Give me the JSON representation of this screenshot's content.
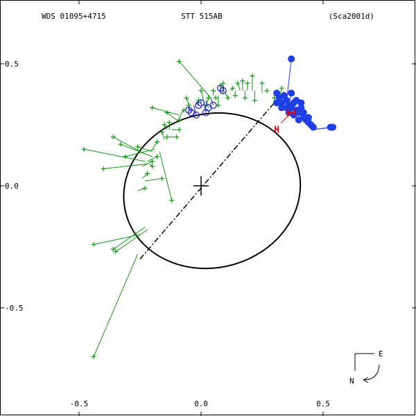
{
  "header": {
    "left": "WDS 01095+4715",
    "center": "STT 515AB",
    "right": "(Sca2001d)"
  },
  "compass": {
    "east": "E",
    "north": "N"
  },
  "colors": {
    "orbit": "#000000",
    "visual": "#119911",
    "micrometer": "#1a1acc",
    "speckle": "#1f3fe6",
    "hipparcos": "#ee0000"
  },
  "chart_data": {
    "type": "scatter",
    "title": "STT 515AB",
    "xlim": [
      -0.8,
      0.8
    ],
    "ylim": [
      0.75,
      -0.75
    ],
    "x_ticks": [
      -0.5,
      0.0,
      0.5
    ],
    "x_tick_labels": [
      "-0.5",
      "0.0",
      "0.5"
    ],
    "y_ticks": [
      -0.5,
      0.0,
      0.5
    ],
    "y_tick_labels": [
      "-0.5",
      "0.0",
      "0.5"
    ],
    "grid": false,
    "orbit_ellipse": {
      "center": [
        0.045,
        -0.02
      ],
      "semi_major": 0.365,
      "semi_minor": 0.315,
      "rotation_deg": -15
    },
    "primary": [
      0.0,
      0.0
    ],
    "line_of_nodes": [
      [
        -0.25,
        -0.3
      ],
      [
        0.3,
        0.34
      ]
    ],
    "hipparcos": {
      "label": "H",
      "point": [
        0.37,
        0.3
      ],
      "label_at": [
        0.31,
        0.24
      ]
    },
    "series": [
      {
        "marker": "plus",
        "points": [
          {
            "obs": [
              -0.44,
              -0.7
            ],
            "calc": [
              -0.26,
              -0.28
            ]
          },
          {
            "obs": [
              -0.44,
              -0.24
            ],
            "calc": [
              -0.25,
              -0.2
            ]
          },
          {
            "obs": [
              -0.36,
              -0.26
            ],
            "calc": [
              -0.23,
              -0.17
            ]
          },
          {
            "obs": [
              -0.35,
              -0.27
            ],
            "calc": [
              -0.22,
              -0.18
            ]
          },
          {
            "obs": [
              -0.48,
              0.15
            ],
            "calc": [
              -0.23,
              0.1
            ]
          },
          {
            "obs": [
              -0.4,
              0.07
            ],
            "calc": [
              -0.22,
              0.09
            ]
          },
          {
            "obs": [
              -0.36,
              0.2
            ],
            "calc": [
              -0.23,
              0.13
            ]
          },
          {
            "obs": [
              -0.33,
              0.17
            ],
            "calc": [
              -0.2,
              0.12
            ]
          },
          {
            "obs": [
              -0.31,
              0.12
            ],
            "calc": [
              -0.19,
              0.15
            ]
          },
          {
            "obs": [
              -0.26,
              0.16
            ],
            "calc": [
              -0.2,
              0.14
            ]
          },
          {
            "obs": [
              -0.2,
              0.1
            ],
            "calc": [
              -0.24,
              0.08
            ]
          },
          {
            "obs": [
              -0.18,
              0.12
            ],
            "calc": [
              -0.22,
              0.1
            ]
          },
          {
            "obs": [
              -0.22,
              0.05
            ],
            "calc": [
              -0.24,
              0.03
            ]
          },
          {
            "obs": [
              -0.16,
              0.03
            ],
            "calc": [
              -0.23,
              0.02
            ]
          },
          {
            "obs": [
              -0.23,
              -0.01
            ],
            "calc": [
              -0.26,
              -0.02
            ]
          },
          {
            "obs": [
              -0.12,
              -0.06
            ],
            "calc": [
              -0.17,
              0.14
            ]
          },
          {
            "obs": [
              -0.2,
              0.08
            ],
            "calc": [
              -0.21,
              0.09
            ]
          },
          {
            "obs": [
              -0.18,
              0.18
            ],
            "calc": [
              -0.2,
              0.15
            ]
          },
          {
            "obs": [
              -0.16,
              0.22
            ],
            "calc": [
              -0.15,
              0.19
            ]
          },
          {
            "obs": [
              -0.14,
              0.2
            ],
            "calc": [
              -0.14,
              0.19
            ]
          },
          {
            "obs": [
              -0.1,
              0.2
            ],
            "calc": [
              -0.13,
              0.2
            ]
          },
          {
            "obs": [
              -0.15,
              0.25
            ],
            "calc": [
              -0.14,
              0.23
            ]
          },
          {
            "obs": [
              -0.13,
              0.26
            ],
            "calc": [
              -0.13,
              0.23
            ]
          },
          {
            "obs": [
              -0.09,
              0.23
            ],
            "calc": [
              -0.12,
              0.23
            ]
          },
          {
            "obs": [
              -0.14,
              0.3
            ],
            "calc": [
              -0.1,
              0.27
            ]
          },
          {
            "obs": [
              -0.2,
              0.32
            ],
            "calc": [
              -0.09,
              0.29
            ]
          },
          {
            "obs": [
              -0.07,
              0.31
            ],
            "calc": [
              -0.08,
              0.3
            ]
          },
          {
            "obs": [
              -0.09,
              0.27
            ],
            "calc": [
              -0.08,
              0.3
            ]
          },
          {
            "obs": [
              -0.06,
              0.36
            ],
            "calc": [
              -0.05,
              0.33
            ]
          },
          {
            "obs": [
              -0.05,
              0.33
            ],
            "calc": [
              -0.05,
              0.32
            ]
          },
          {
            "obs": [
              -0.01,
              0.35
            ],
            "calc": [
              -0.02,
              0.34
            ]
          },
          {
            "obs": [
              -0.09,
              0.51
            ],
            "calc": [
              0.04,
              0.36
            ]
          },
          {
            "obs": [
              0.03,
              0.36
            ],
            "calc": [
              0.03,
              0.36
            ]
          },
          {
            "obs": [
              0.02,
              0.33
            ],
            "calc": [
              0.03,
              0.36
            ]
          },
          {
            "obs": [
              0.0,
              0.39
            ],
            "calc": [
              0.01,
              0.35
            ]
          },
          {
            "obs": [
              0.05,
              0.39
            ],
            "calc": [
              0.05,
              0.37
            ]
          },
          {
            "obs": [
              0.06,
              0.36
            ],
            "calc": [
              0.06,
              0.37
            ]
          },
          {
            "obs": [
              0.09,
              0.42
            ],
            "calc": [
              0.09,
              0.38
            ]
          },
          {
            "obs": [
              0.07,
              0.33
            ],
            "calc": [
              0.07,
              0.37
            ]
          },
          {
            "obs": [
              0.11,
              0.36
            ],
            "calc": [
              0.1,
              0.38
            ]
          },
          {
            "obs": [
              0.13,
              0.4
            ],
            "calc": [
              0.12,
              0.39
            ]
          },
          {
            "obs": [
              0.14,
              0.37
            ],
            "calc": [
              0.14,
              0.39
            ]
          },
          {
            "obs": [
              0.15,
              0.42
            ],
            "calc": [
              0.16,
              0.39
            ]
          },
          {
            "obs": [
              0.18,
              0.36
            ],
            "calc": [
              0.18,
              0.39
            ]
          },
          {
            "obs": [
              0.19,
              0.42
            ],
            "calc": [
              0.19,
              0.39
            ]
          },
          {
            "obs": [
              0.21,
              0.45
            ],
            "calc": [
              0.21,
              0.39
            ]
          },
          {
            "obs": [
              0.22,
              0.35
            ],
            "calc": [
              0.22,
              0.39
            ]
          },
          {
            "obs": [
              0.25,
              0.42
            ],
            "calc": [
              0.25,
              0.38
            ]
          },
          {
            "obs": [
              0.27,
              0.39
            ],
            "calc": [
              0.27,
              0.38
            ]
          },
          {
            "obs": [
              0.3,
              0.36
            ],
            "calc": [
              0.3,
              0.36
            ]
          },
          {
            "obs": [
              0.33,
              0.4
            ],
            "calc": [
              0.32,
              0.35
            ]
          },
          {
            "obs": [
              0.08,
              0.41
            ],
            "calc": [
              0.1,
              0.38
            ]
          },
          {
            "obs": [
              0.17,
              0.43
            ],
            "calc": [
              0.17,
              0.39
            ]
          }
        ]
      },
      {
        "marker": "open-circle",
        "points": [
          {
            "obs": [
              -0.05,
              0.31
            ],
            "calc": [
              -0.05,
              0.32
            ]
          },
          {
            "obs": [
              -0.04,
              0.3
            ],
            "calc": [
              -0.05,
              0.32
            ]
          },
          {
            "obs": [
              -0.02,
              0.29
            ],
            "calc": [
              -0.03,
              0.33
            ]
          },
          {
            "obs": [
              0.02,
              0.3
            ],
            "calc": [
              0.01,
              0.35
            ]
          },
          {
            "obs": [
              0.03,
              0.32
            ],
            "calc": [
              0.02,
              0.35
            ]
          },
          {
            "obs": [
              0.05,
              0.33
            ],
            "calc": [
              0.04,
              0.36
            ]
          },
          {
            "obs": [
              0.08,
              0.4
            ],
            "calc": [
              0.08,
              0.38
            ]
          },
          {
            "obs": [
              0.09,
              0.39
            ],
            "calc": [
              0.09,
              0.38
            ]
          },
          {
            "obs": [
              -0.01,
              0.33
            ],
            "calc": [
              -0.02,
              0.34
            ]
          },
          {
            "obs": [
              0.0,
              0.34
            ],
            "calc": [
              0.0,
              0.35
            ]
          }
        ]
      },
      {
        "marker": "filled-circle",
        "points": [
          {
            "obs": [
              0.37,
              0.52
            ],
            "calc": [
              0.35,
              0.34
            ]
          },
          {
            "obs": [
              0.31,
              0.38
            ],
            "calc": [
              0.31,
              0.36
            ]
          },
          {
            "obs": [
              0.32,
              0.36
            ],
            "calc": [
              0.32,
              0.35
            ]
          },
          {
            "obs": [
              0.33,
              0.34
            ],
            "calc": [
              0.33,
              0.35
            ]
          },
          {
            "obs": [
              0.34,
              0.37
            ],
            "calc": [
              0.34,
              0.34
            ]
          },
          {
            "obs": [
              0.35,
              0.35
            ],
            "calc": [
              0.35,
              0.34
            ]
          },
          {
            "obs": [
              0.36,
              0.33
            ],
            "calc": [
              0.36,
              0.33
            ]
          },
          {
            "obs": [
              0.37,
              0.32
            ],
            "calc": [
              0.37,
              0.32
            ]
          },
          {
            "obs": [
              0.38,
              0.34
            ],
            "calc": [
              0.38,
              0.31
            ]
          },
          {
            "obs": [
              0.39,
              0.31
            ],
            "calc": [
              0.39,
              0.31
            ]
          },
          {
            "obs": [
              0.4,
              0.3
            ],
            "calc": [
              0.4,
              0.3
            ]
          },
          {
            "obs": [
              0.41,
              0.32
            ],
            "calc": [
              0.41,
              0.29
            ]
          },
          {
            "obs": [
              0.42,
              0.28
            ],
            "calc": [
              0.42,
              0.28
            ]
          },
          {
            "obs": [
              0.43,
              0.27
            ],
            "calc": [
              0.43,
              0.27
            ]
          },
          {
            "obs": [
              0.44,
              0.26
            ],
            "calc": [
              0.44,
              0.26
            ]
          },
          {
            "obs": [
              0.45,
              0.25
            ],
            "calc": [
              0.45,
              0.25
            ]
          },
          {
            "obs": [
              0.46,
              0.24
            ],
            "calc": [
              0.46,
              0.24
            ]
          },
          {
            "obs": [
              0.37,
              0.38
            ],
            "calc": [
              0.36,
              0.33
            ]
          },
          {
            "obs": [
              0.39,
              0.35
            ],
            "calc": [
              0.38,
              0.32
            ]
          },
          {
            "obs": [
              0.41,
              0.34
            ],
            "calc": [
              0.4,
              0.3
            ]
          },
          {
            "obs": [
              0.33,
              0.32
            ],
            "calc": [
              0.33,
              0.35
            ]
          },
          {
            "obs": [
              0.36,
              0.3
            ],
            "calc": [
              0.36,
              0.33
            ]
          },
          {
            "obs": [
              0.38,
              0.29
            ],
            "calc": [
              0.38,
              0.31
            ]
          },
          {
            "obs": [
              0.42,
              0.3
            ],
            "calc": [
              0.42,
              0.28
            ]
          },
          {
            "obs": [
              0.44,
              0.28
            ],
            "calc": [
              0.44,
              0.26
            ]
          },
          {
            "obs": [
              0.53,
              0.24
            ],
            "calc": [
              0.46,
              0.23
            ]
          },
          {
            "obs": [
              0.54,
              0.24
            ],
            "calc": [
              0.46,
              0.23
            ]
          },
          {
            "obs": [
              0.31,
              0.34
            ],
            "calc": [
              0.31,
              0.36
            ]
          },
          {
            "obs": [
              0.35,
              0.32
            ],
            "calc": [
              0.35,
              0.34
            ]
          },
          {
            "obs": [
              0.4,
              0.27
            ],
            "calc": [
              0.4,
              0.3
            ]
          }
        ]
      }
    ]
  }
}
